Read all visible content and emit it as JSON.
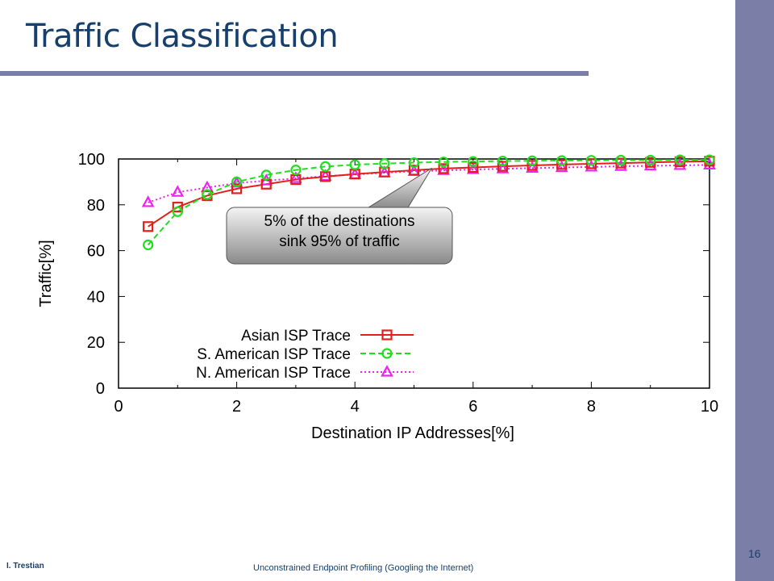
{
  "slide": {
    "title": "Traffic Classification",
    "footer_left": "I. Trestian",
    "footer_center": "Unconstrained Endpoint Profiling (Googling the Internet)",
    "page_number": "16"
  },
  "colors": {
    "accent": "#7b7fa8",
    "title": "#163f6d"
  },
  "chart_data": {
    "type": "line",
    "xlabel": "Destination IP Addresses[%]",
    "ylabel": "Traffic[%]",
    "xlim": [
      0,
      10
    ],
    "ylim": [
      0,
      100
    ],
    "xticks": [
      0,
      2,
      4,
      6,
      8,
      10
    ],
    "yticks": [
      0,
      20,
      40,
      60,
      80,
      100
    ],
    "grid": false,
    "legend_position": "bottom-center",
    "x": [
      0.5,
      1,
      1.5,
      2,
      2.5,
      3,
      3.5,
      4,
      4.5,
      5,
      5.5,
      6,
      6.5,
      7,
      7.5,
      8,
      8.5,
      9,
      9.5,
      10
    ],
    "series": [
      {
        "name": "Asian ISP Trace",
        "color": "#e0201a",
        "marker": "square",
        "dash": "solid",
        "values": [
          70.5,
          79,
          84,
          87,
          89,
          91,
          92.3,
          93.4,
          94.3,
          95.1,
          95.8,
          96.3,
          96.8,
          97.2,
          97.6,
          97.9,
          98.2,
          98.5,
          98.8,
          99
        ]
      },
      {
        "name": "S. American ISP Trace",
        "color": "#22dd22",
        "marker": "circle",
        "dash": "dashed",
        "values": [
          62.5,
          77,
          84.5,
          90,
          93,
          95.2,
          96.7,
          97.5,
          98,
          98.4,
          98.7,
          98.9,
          99.1,
          99.2,
          99.3,
          99.4,
          99.5,
          99.5,
          99.6,
          99.6
        ]
      },
      {
        "name": "N. American ISP Trace",
        "color": "#ee22ee",
        "marker": "triangle",
        "dash": "dotted",
        "values": [
          81,
          85.5,
          87.5,
          89.5,
          90.5,
          91.5,
          92.5,
          93.2,
          94,
          94.6,
          95,
          95.4,
          95.7,
          96,
          96.3,
          96.5,
          96.8,
          97,
          97.2,
          97.4
        ]
      }
    ],
    "annotation": {
      "line1": "5% of the destinations",
      "line2": "sink 95% of traffic",
      "points_to": [
        5.3,
        96
      ]
    }
  }
}
